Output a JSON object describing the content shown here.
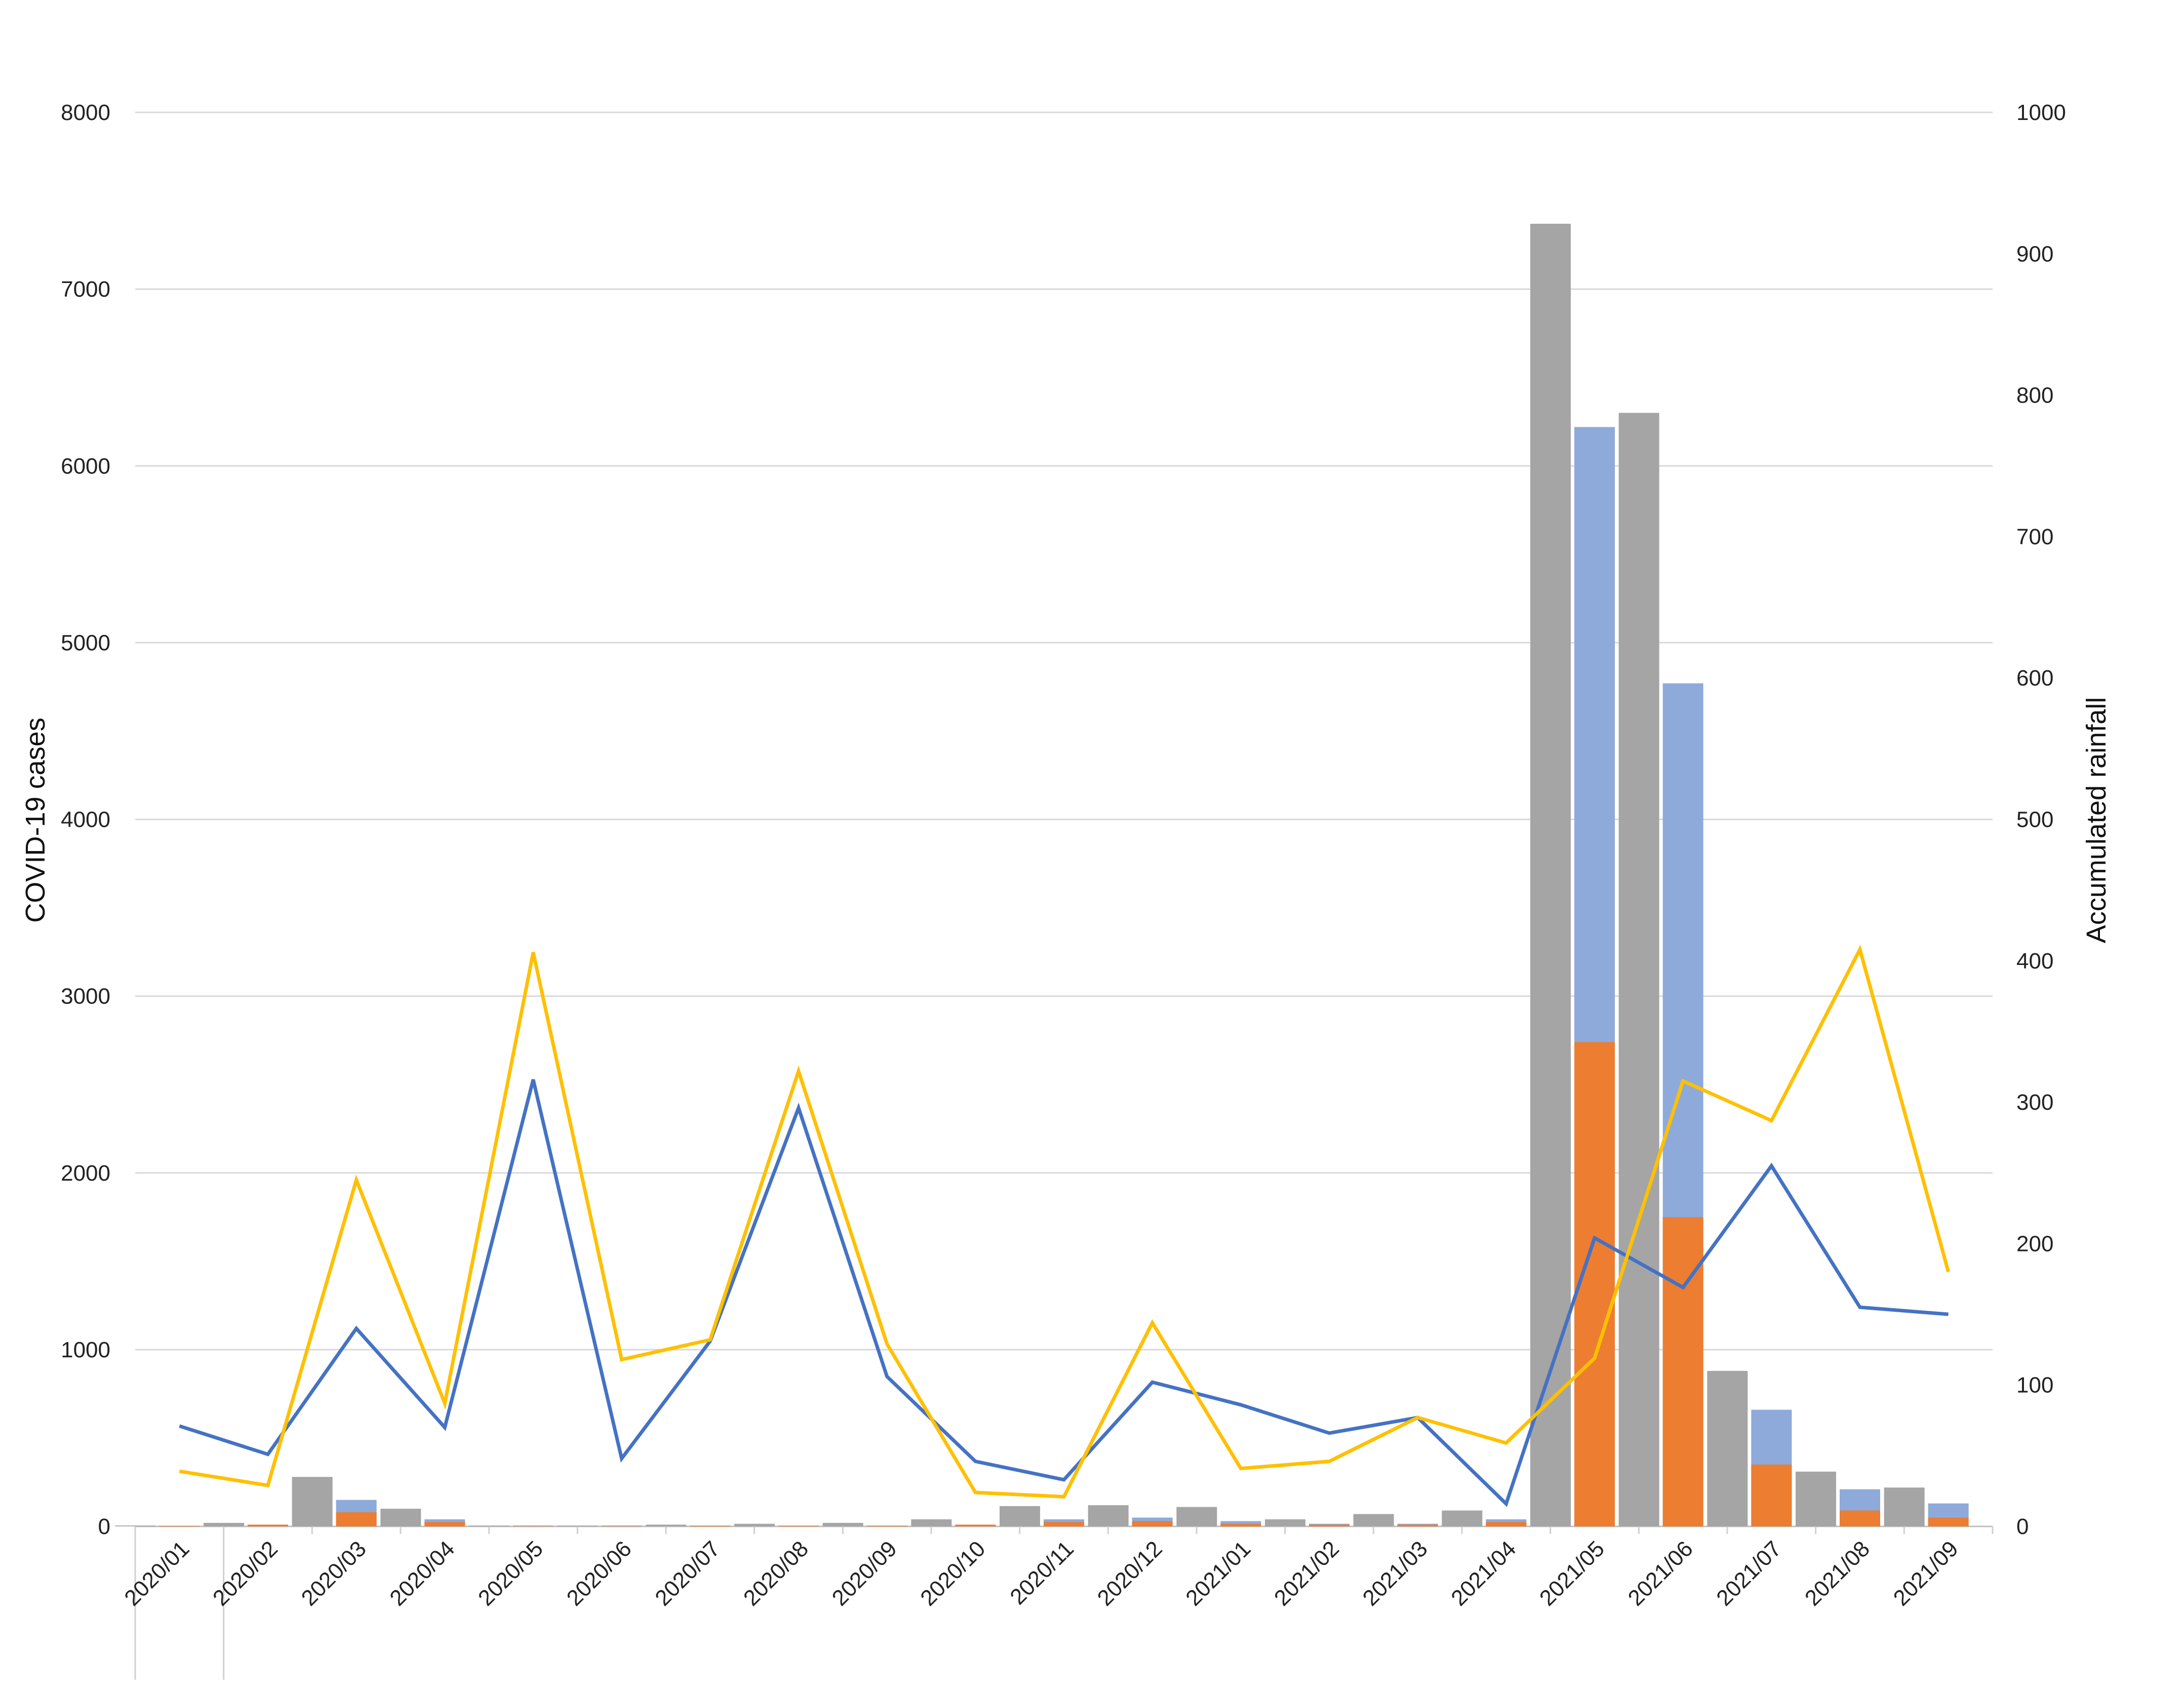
{
  "chart_data": {
    "type": "bar",
    "title": "",
    "categories": [
      "2020/01",
      "2020/02",
      "2020/03",
      "2020/04",
      "2020/05",
      "2020/06",
      "2020/07",
      "2020/08",
      "2020/09",
      "2020/10",
      "2020/11",
      "2020/12",
      "2021/01",
      "2021/02",
      "2021/03",
      "2021/04",
      "2021/05",
      "2021/06",
      "2021/07",
      "2021/08",
      "2021/09"
    ],
    "ylabel_left": "COVID-19 cases",
    "ylabel_right": "Accumulated rainfall",
    "ylim_left": [
      0,
      8000
    ],
    "ylim_right": [
      0,
      1000
    ],
    "yticks_left": [
      "0",
      "1000",
      "2000",
      "3000",
      "4000",
      "5000",
      "6000",
      "7000",
      "8000"
    ],
    "yticks_right": [
      "0",
      "100",
      "200",
      "300",
      "400",
      "500",
      "600",
      "700",
      "800",
      "900",
      "1000"
    ],
    "grid": true,
    "legend": "none",
    "colors": {
      "grey_bar": "#a5a5a5",
      "blue_bar": "#8eaadb",
      "orange_bar": "#ed7d31",
      "blue_line": "#4472c4",
      "yellow_line": "#ffc000",
      "grid": "#d9d9d9"
    },
    "bars_grey": [
      5,
      20,
      280,
      100,
      5,
      5,
      10,
      15,
      20,
      40,
      115,
      120,
      110,
      40,
      70,
      90,
      7370,
      6300,
      880,
      310,
      220
    ],
    "bars_blue_total": [
      3,
      10,
      150,
      40,
      5,
      5,
      5,
      5,
      5,
      10,
      40,
      50,
      30,
      15,
      15,
      40,
      6220,
      4770,
      660,
      210,
      130
    ],
    "bars_orange": [
      3,
      10,
      80,
      25,
      2,
      2,
      3,
      3,
      3,
      10,
      25,
      30,
      15,
      10,
      10,
      25,
      2740,
      1750,
      350,
      90,
      50
    ],
    "line_blue": [
      71,
      51,
      140,
      70,
      316,
      48,
      131,
      296,
      106,
      46,
      33,
      102,
      86,
      66,
      77,
      16,
      204,
      169,
      255,
      155,
      150
    ],
    "line_yellow": [
      39,
      29,
      245,
      87,
      406,
      118,
      132,
      322,
      129,
      24,
      21,
      144,
      41,
      46,
      77,
      59,
      119,
      315,
      287,
      408,
      180
    ]
  }
}
